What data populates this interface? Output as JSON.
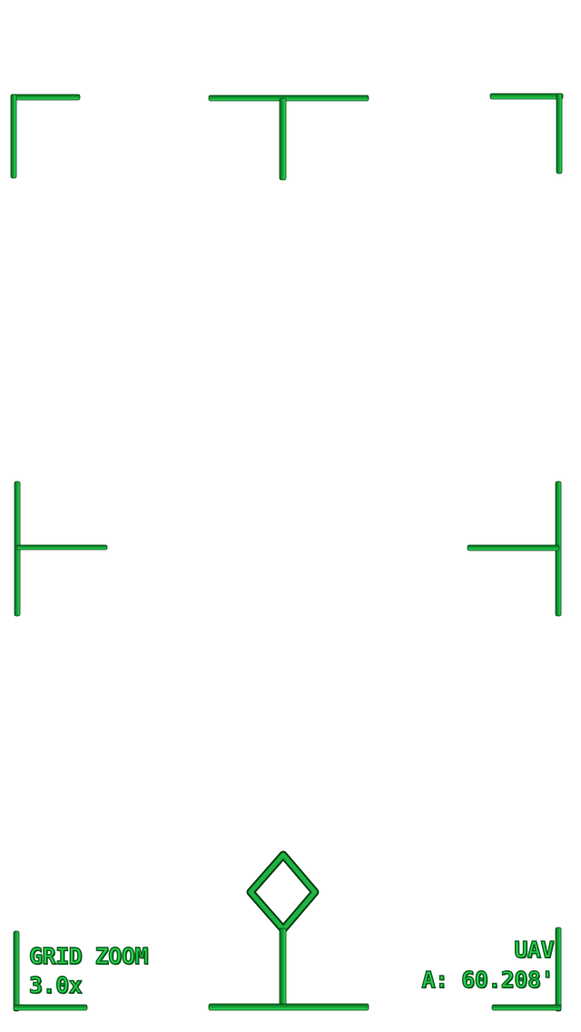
{
  "hud": {
    "grid_zoom_label": "GRID ZOOM",
    "zoom_value": "3.0x",
    "mode_label": "UAV",
    "altitude_readout": "A: 60.208'"
  },
  "colors": {
    "line_light": "#2ee85a",
    "line_dark": "#0a6b20",
    "text": "#22d64a",
    "text_outline": "#0d5a1e",
    "background": "#ffffff"
  },
  "icons": [
    "top-left-corner-bracket-icon",
    "top-center-tee-marker-icon",
    "top-right-corner-bracket-icon",
    "left-center-tee-marker-icon",
    "right-center-tee-marker-icon",
    "bottom-left-corner-bracket-icon",
    "bottom-right-corner-bracket-icon",
    "diamond-waypoint-icon",
    "waypoint-stem-icon",
    "bottom-center-baseline-icon"
  ]
}
